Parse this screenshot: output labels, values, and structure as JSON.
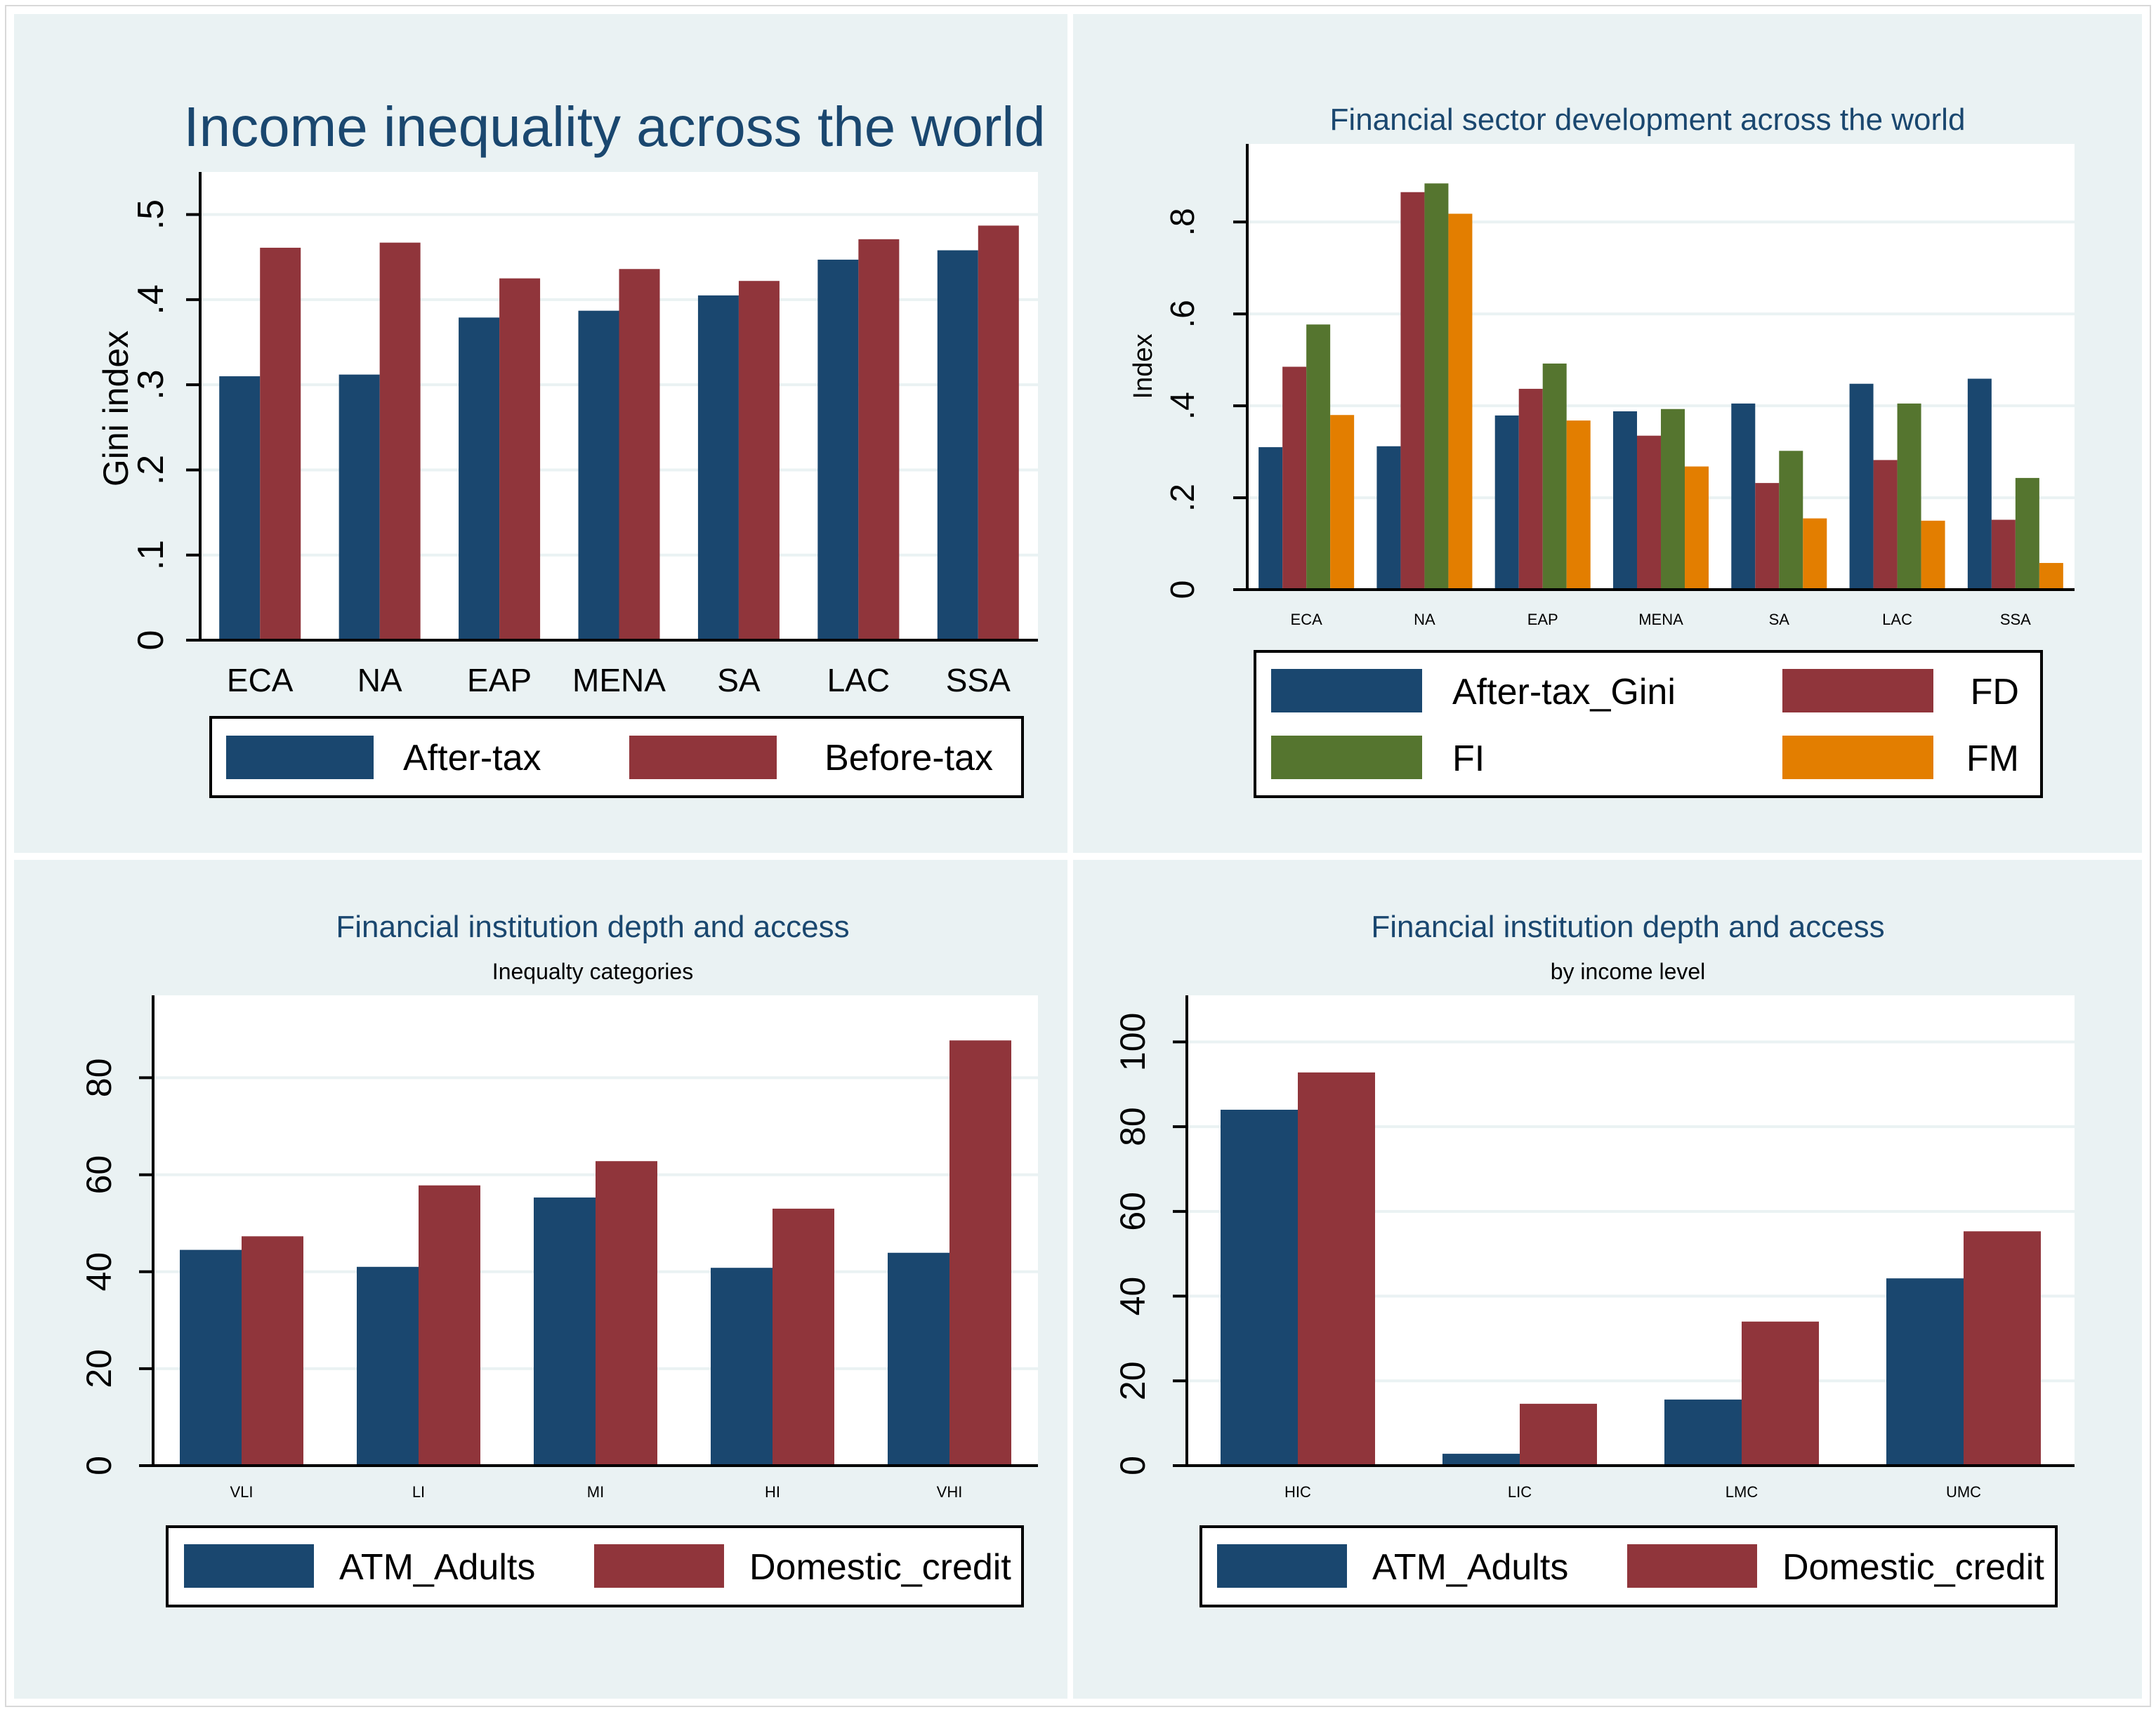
{
  "colors": {
    "outer_bg": "#eaf2f3",
    "plot_bg": "#ffffff",
    "grid": "#eaf2f3",
    "title_text": "#1a476f",
    "axis": "#000000",
    "navy": "#1a476f",
    "maroon": "#90353b",
    "green": "#55752f",
    "orange": "#e37e00"
  },
  "chart_data": [
    {
      "id": "p1",
      "type": "bar",
      "title": "Income inequality across the world",
      "ylabel": "Gini index",
      "ylim": [
        0,
        0.55
      ],
      "yticks": [
        0,
        0.1,
        0.2,
        0.3,
        0.4,
        0.5
      ],
      "yticklabels": [
        "0",
        ".1",
        ".2",
        ".3",
        ".4",
        ".5"
      ],
      "categories": [
        "ECA",
        "NA",
        "EAP",
        "MENA",
        "SA",
        "LAC",
        "SSA"
      ],
      "series": [
        {
          "name": "After-tax",
          "color": "#1a476f",
          "values": [
            0.31,
            0.312,
            0.379,
            0.387,
            0.405,
            0.447,
            0.458
          ]
        },
        {
          "name": "Before-tax",
          "color": "#90353b",
          "values": [
            0.461,
            0.467,
            0.425,
            0.436,
            0.422,
            0.471,
            0.487
          ]
        }
      ]
    },
    {
      "id": "p2",
      "type": "bar",
      "title": "Financial sector development across the world",
      "ylabel": "Index",
      "ylim": [
        0,
        0.97
      ],
      "yticks": [
        0,
        0.2,
        0.4,
        0.6,
        0.8
      ],
      "yticklabels": [
        "0",
        ".2",
        ".4",
        ".6",
        ".8"
      ],
      "categories": [
        "ECA",
        "NA",
        "EAP",
        "MENA",
        "SA",
        "LAC",
        "SSA"
      ],
      "series": [
        {
          "name": "After-tax_Gini",
          "color": "#1a476f",
          "values": [
            0.31,
            0.312,
            0.379,
            0.388,
            0.405,
            0.448,
            0.459
          ]
        },
        {
          "name": "FD",
          "color": "#90353b",
          "values": [
            0.485,
            0.865,
            0.437,
            0.335,
            0.232,
            0.282,
            0.152
          ]
        },
        {
          "name": "FI",
          "color": "#55752f",
          "values": [
            0.577,
            0.884,
            0.492,
            0.393,
            0.302,
            0.405,
            0.243
          ]
        },
        {
          "name": "FM",
          "color": "#e37e00",
          "values": [
            0.38,
            0.818,
            0.368,
            0.268,
            0.155,
            0.15,
            0.058
          ]
        }
      ]
    },
    {
      "id": "p3",
      "type": "bar",
      "title": "Financial institution depth and access",
      "subtitle": "Inequalty categories",
      "ylabel": "",
      "ylim": [
        0,
        97
      ],
      "yticks": [
        0,
        20,
        40,
        60,
        80
      ],
      "yticklabels": [
        "0",
        "20",
        "40",
        "60",
        "80"
      ],
      "categories": [
        "VLI",
        "LI",
        "MI",
        "HI",
        "VHI"
      ],
      "series": [
        {
          "name": "ATM_Adults",
          "color": "#1a476f",
          "values": [
            44.5,
            41,
            55.3,
            40.8,
            43.9
          ]
        },
        {
          "name": "Domestic_credit",
          "color": "#90353b",
          "values": [
            47.3,
            57.8,
            62.8,
            53,
            87.7
          ]
        }
      ]
    },
    {
      "id": "p4",
      "type": "bar",
      "title": "Financial institution depth and access",
      "subtitle": "by income level",
      "ylabel": "",
      "ylim": [
        0,
        111
      ],
      "yticks": [
        0,
        20,
        40,
        60,
        80,
        100
      ],
      "yticklabels": [
        "0",
        "20",
        "40",
        "60",
        "80",
        "100"
      ],
      "categories": [
        "HIC",
        "LIC",
        "LMC",
        "UMC"
      ],
      "series": [
        {
          "name": "ATM_Adults",
          "color": "#1a476f",
          "values": [
            84,
            2.8,
            15.6,
            44.2
          ]
        },
        {
          "name": "Domestic_credit",
          "color": "#90353b",
          "values": [
            92.8,
            14.6,
            34,
            55.3
          ]
        }
      ]
    }
  ]
}
